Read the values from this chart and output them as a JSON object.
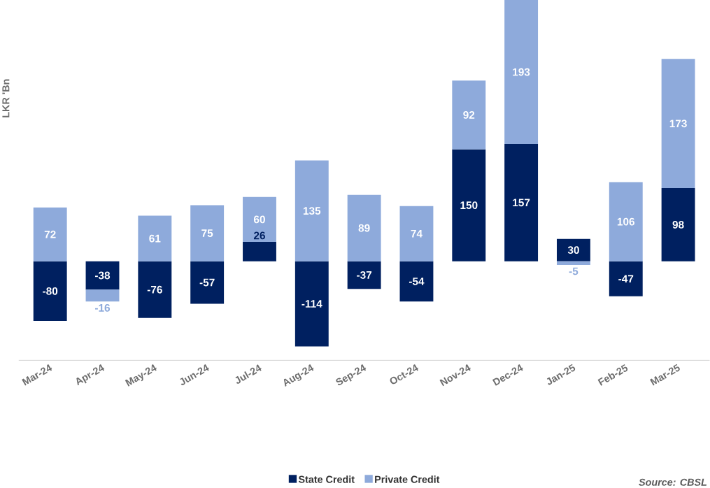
{
  "chart_data": {
    "type": "bar",
    "stacked": true,
    "ylabel": "LKR 'Bn",
    "categories": [
      "Mar-24",
      "Apr-24",
      "May-24",
      "Jun-24",
      "Jul-24",
      "Aug-24",
      "Sep-24",
      "Oct-24",
      "Nov-24",
      "Dec-24",
      "Jan-25",
      "Feb-25",
      "Mar-25"
    ],
    "series": [
      {
        "name": "State Credit",
        "color": "#002060",
        "values": [
          -80,
          -38,
          -76,
          -57,
          26,
          -114,
          -37,
          -54,
          150,
          157,
          30,
          -47,
          98
        ]
      },
      {
        "name": "Private Credit",
        "color": "#8eaadb",
        "values": [
          72,
          -16,
          61,
          75,
          60,
          135,
          89,
          74,
          92,
          193,
          -5,
          106,
          173
        ]
      }
    ],
    "data_labels": true,
    "legend": "bottom",
    "annotations": [
      "Source: CBSL"
    ]
  }
}
